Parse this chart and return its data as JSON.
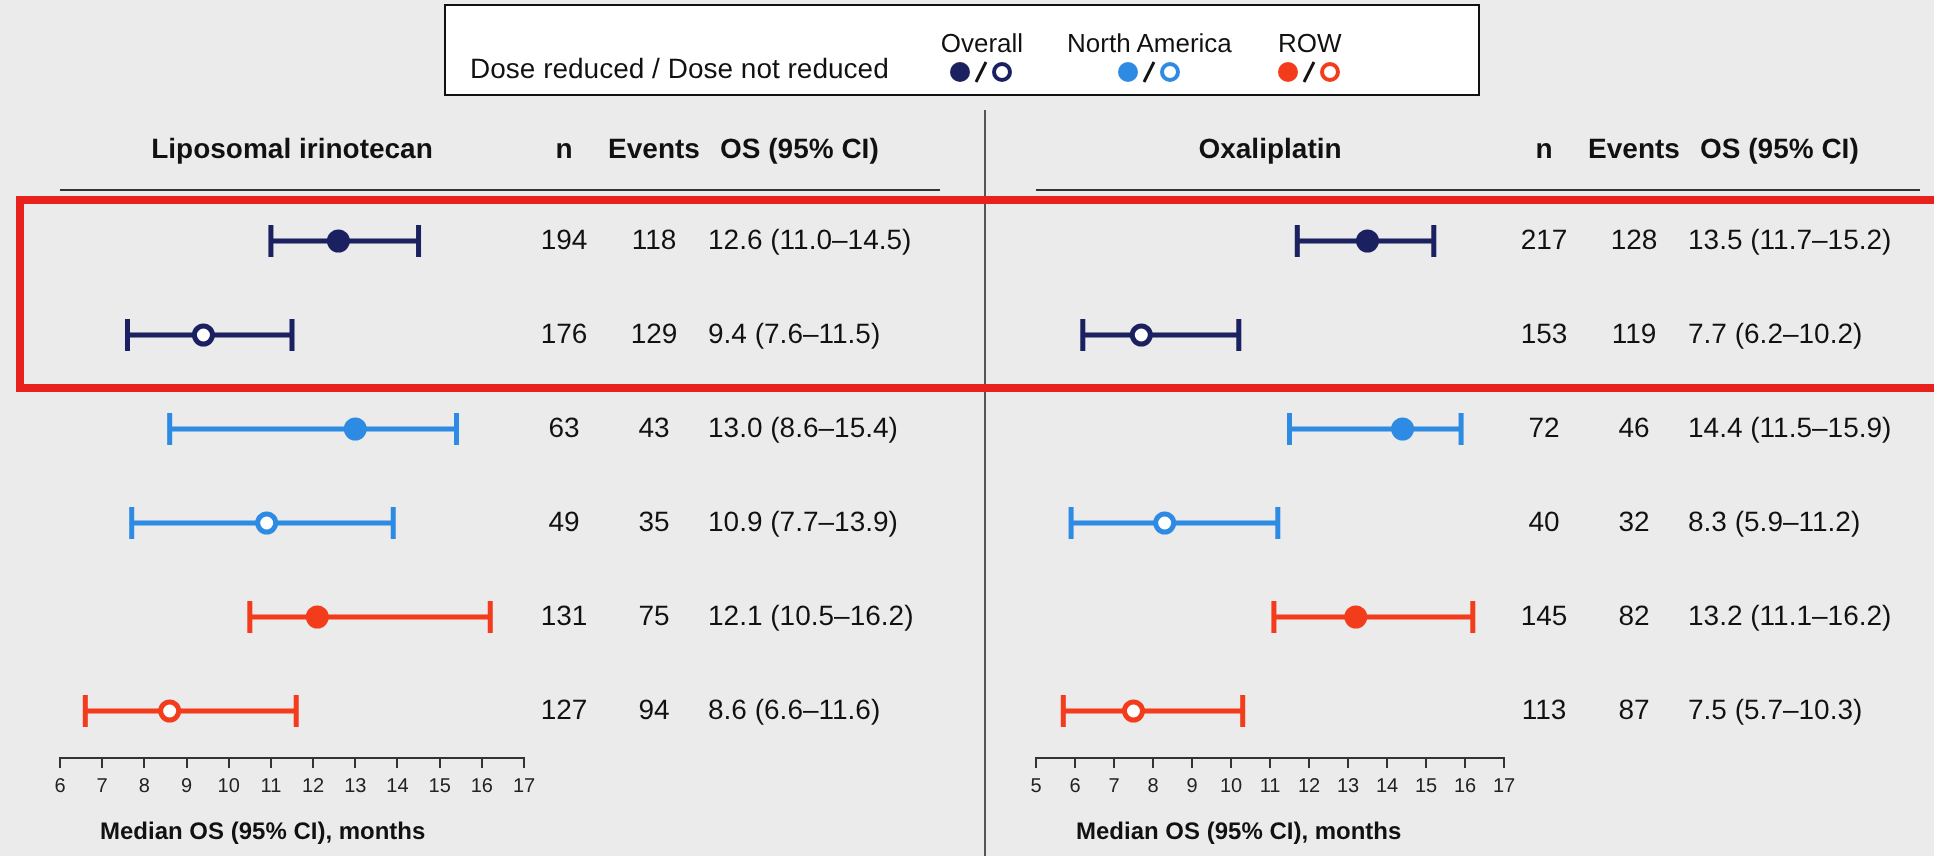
{
  "chart_data": [
    {
      "type": "scatter",
      "orientation": "horizontal",
      "title": "Liposomal irinotecan",
      "xlabel": "Median OS (95% CI), months",
      "legend_title": "Dose reduced / Dose not reduced",
      "legend": "top",
      "grid": false,
      "marker": "circle",
      "categories": [
        "194",
        "176",
        "63",
        "49",
        "131",
        "127"
      ],
      "xlim": [
        6,
        17
      ],
      "xticks": [
        6,
        7,
        8,
        9,
        10,
        11,
        12,
        13,
        14,
        15,
        16,
        17
      ],
      "annotations": [
        "n",
        "Events",
        "OS (95% CI)",
        "118",
        "129",
        "43",
        "35",
        "75",
        "94",
        "12.6 (11.0–14.5)",
        "9.4 (7.6–11.5)",
        "13.0 (8.6–15.4)",
        "10.9 (7.7–13.9)",
        "12.1 (10.5–16.2)",
        "8.6 (6.6–11.6)"
      ],
      "series": [
        {
          "name": "Overall",
          "color": "#1b2060",
          "values": [
            12.6,
            9.4,
            null,
            null,
            null,
            null
          ],
          "errors": [
            [
              11.0,
              14.5
            ],
            [
              7.6,
              11.5
            ],
            null,
            null,
            null,
            null
          ]
        },
        {
          "name": "North America",
          "color": "#2e8be3",
          "values": [
            null,
            null,
            13.0,
            10.9,
            null,
            null
          ],
          "errors": [
            null,
            null,
            [
              8.6,
              15.4
            ],
            [
              7.7,
              13.9
            ],
            null,
            null
          ]
        },
        {
          "name": "ROW",
          "color": "#f23c1c",
          "values": [
            null,
            null,
            null,
            null,
            12.1,
            8.6
          ],
          "errors": [
            null,
            null,
            null,
            null,
            [
              10.5,
              16.2
            ],
            [
              6.6,
              11.6
            ]
          ]
        }
      ]
    },
    {
      "type": "scatter",
      "orientation": "horizontal",
      "title": "Oxaliplatin",
      "xlabel": "Median OS (95% CI), months",
      "grid": false,
      "marker": "circle",
      "categories": [
        "217",
        "153",
        "72",
        "40",
        "145",
        "113"
      ],
      "xlim": [
        5,
        17
      ],
      "xticks": [
        5,
        6,
        7,
        8,
        9,
        10,
        11,
        12,
        13,
        14,
        15,
        16,
        17
      ],
      "annotations": [
        "n",
        "Events",
        "OS (95% CI)",
        "128",
        "119",
        "46",
        "32",
        "82",
        "87",
        "13.5 (11.7–15.2)",
        "7.7 (6.2–10.2)",
        "14.4 (11.5–15.9)",
        "8.3 (5.9–11.2)",
        "13.2 (11.1–16.2)",
        "7.5 (5.7–10.3)"
      ],
      "series": [
        {
          "color": "#1b2060",
          "values": [
            13.5,
            7.7,
            null,
            null,
            null,
            null
          ],
          "errors": [
            [
              11.7,
              15.2
            ],
            [
              6.2,
              10.2
            ],
            null,
            null,
            null,
            null
          ]
        },
        {
          "color": "#2e8be3",
          "values": [
            null,
            null,
            14.4,
            8.3,
            null,
            null
          ],
          "errors": [
            null,
            null,
            [
              11.5,
              15.9
            ],
            [
              5.9,
              11.2
            ],
            null,
            null
          ]
        },
        {
          "color": "#f23c1c",
          "values": [
            null,
            null,
            null,
            null,
            13.2,
            7.5
          ],
          "errors": [
            null,
            null,
            null,
            null,
            [
              11.1,
              16.2
            ],
            [
              5.7,
              10.3
            ]
          ]
        }
      ]
    }
  ]
}
